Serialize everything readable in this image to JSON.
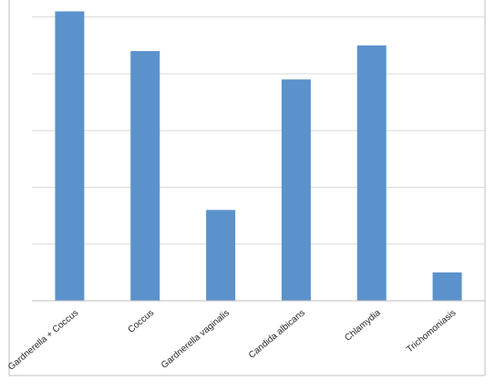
{
  "chart_data": {
    "type": "bar",
    "categories": [
      "Gardnerella + Coccus",
      "Coccus",
      "Gardnerella vaginalis",
      "Candida albicans",
      "Chlamydia",
      "Trichomoniasis"
    ],
    "values": [
      51,
      44,
      16,
      39,
      45,
      5
    ],
    "title": "",
    "xlabel": "",
    "ylabel": "",
    "ylim": [
      0,
      53
    ],
    "grid": true,
    "legend": "none",
    "bar_color": "#5b92cc",
    "grid_color": "#d9d9d9",
    "axis_color": "#bfbfbf",
    "label_color": "#262626"
  }
}
